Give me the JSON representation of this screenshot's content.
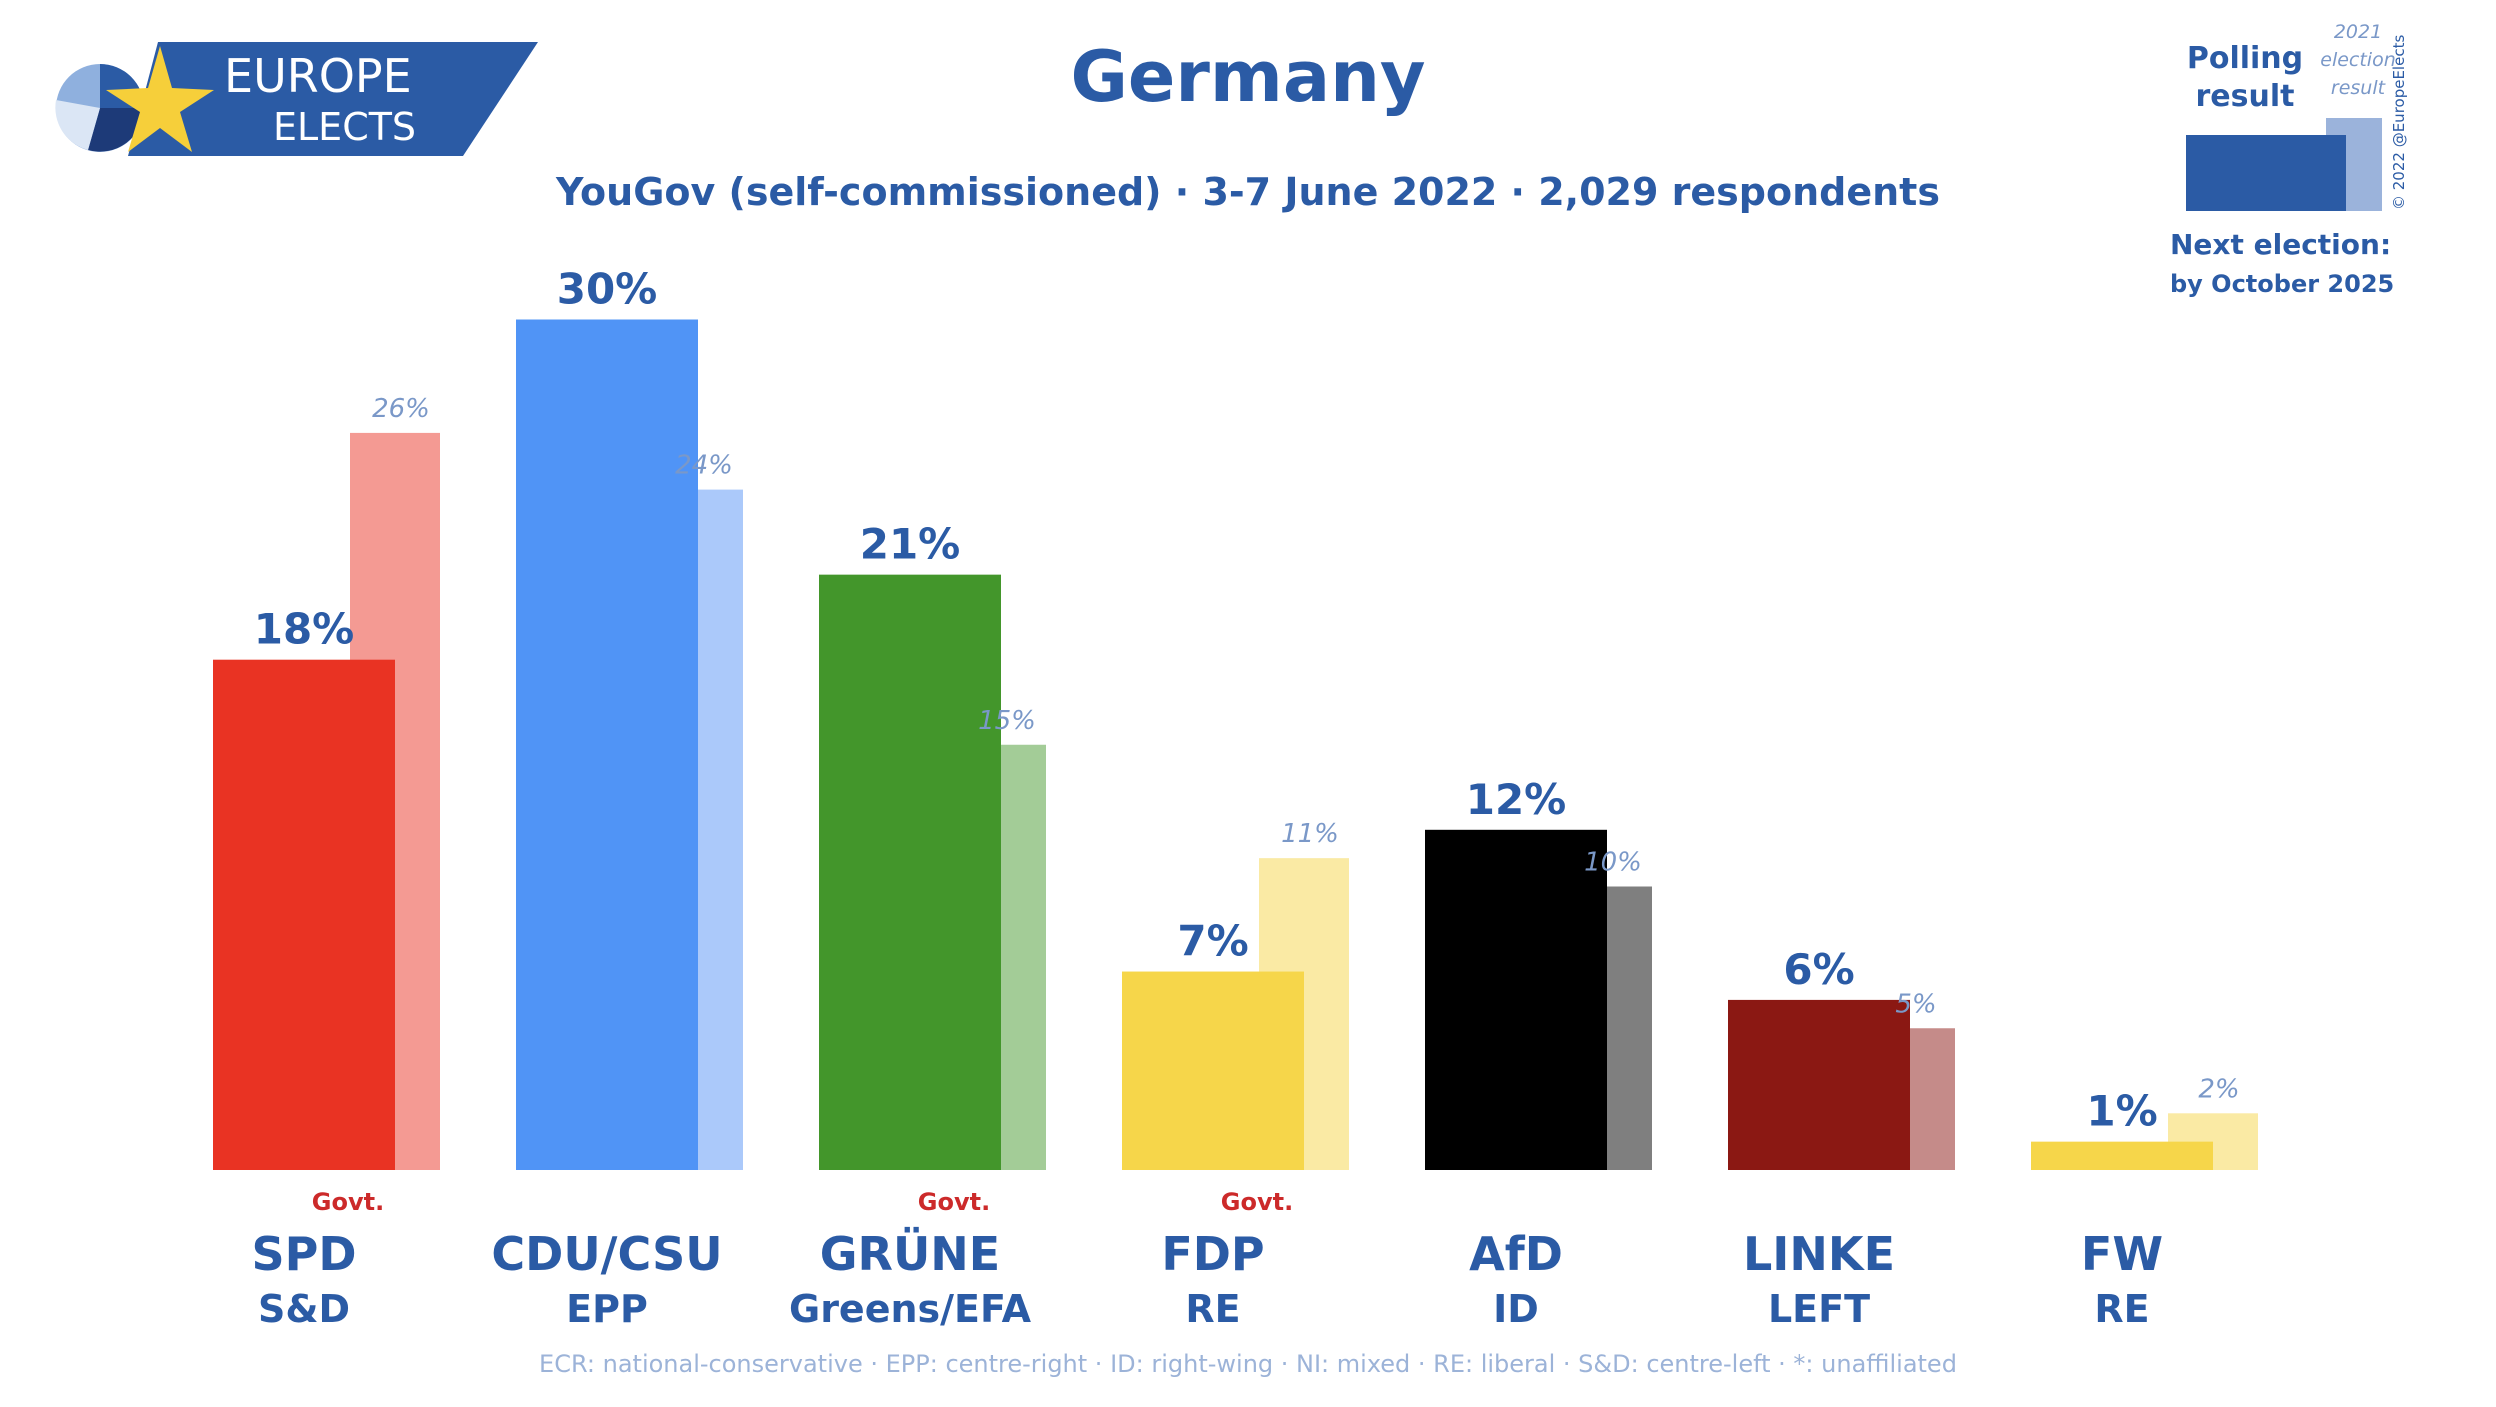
{
  "brand": {
    "line1": "EUROPE",
    "line2": "ELECTS"
  },
  "header": {
    "title": "Germany",
    "subtitle": "YouGov (self-commissioned) · 3-7 June 2022 · 2,029 respondents"
  },
  "legend": {
    "polling_label_1": "Polling",
    "polling_label_2": "result",
    "election_label_1": "2021",
    "election_label_2": "election",
    "election_label_3": "result",
    "next_election_title": "Next election:",
    "next_election_date": "by October 2025",
    "copyright": "© 2022 @EuropeElects"
  },
  "footer": {
    "note": "ECR: national-conservative · EPP: centre-right · ID: right-wing · NI: mixed · RE: liberal · S&D: centre-left · *: unaffiliated"
  },
  "colors": {
    "brand_blue": "#2b5ba5",
    "light_blue_text": "#7a98c8",
    "govt_red": "#cc2a2a"
  },
  "chart_data": {
    "type": "bar",
    "title": "Germany",
    "subtitle": "YouGov (self-commissioned) · 3-7 June 2022 · 2,029 respondents",
    "unit": "%",
    "ylim": [
      0,
      30
    ],
    "grid": false,
    "legend_position": "top-right",
    "series": [
      {
        "name": "Polling result",
        "values": [
          18,
          30,
          21,
          7,
          12,
          6,
          1
        ]
      },
      {
        "name": "2021 election result",
        "values": [
          26,
          24,
          15,
          11,
          10,
          5,
          2
        ]
      }
    ],
    "parties": [
      {
        "name": "SPD",
        "group": "S&D",
        "poll": 18,
        "poll_label": "18%",
        "prev": 26,
        "prev_label": "26%",
        "govt": "Govt.",
        "color": "#e93323",
        "prev_color": "#f49a93"
      },
      {
        "name": "CDU/CSU",
        "group": "EPP",
        "poll": 30,
        "poll_label": "30%",
        "prev": 24,
        "prev_label": "24%",
        "govt": "",
        "color": "#5094f6",
        "prev_color": "#abc9fa"
      },
      {
        "name": "GRÜNE",
        "group": "Greens/EFA",
        "poll": 21,
        "poll_label": "21%",
        "prev": 15,
        "prev_label": "15%",
        "govt": "Govt.",
        "color": "#43962b",
        "prev_color": "#a3cc97"
      },
      {
        "name": "FDP",
        "group": "RE",
        "poll": 7,
        "poll_label": "7%",
        "prev": 11,
        "prev_label": "11%",
        "govt": "Govt.",
        "color": "#f6d64a",
        "prev_color": "#faeaa4"
      },
      {
        "name": "AfD",
        "group": "ID",
        "poll": 12,
        "poll_label": "12%",
        "prev": 10,
        "prev_label": "10%",
        "govt": "",
        "color": "#000000",
        "prev_color": "#7f7f7f"
      },
      {
        "name": "LINKE",
        "group": "LEFT",
        "poll": 6,
        "poll_label": "6%",
        "prev": 5,
        "prev_label": "5%",
        "govt": "",
        "color": "#8b1813",
        "prev_color": "#c58b89"
      },
      {
        "name": "FW",
        "group": "RE",
        "poll": 1,
        "poll_label": "1%",
        "prev": 2,
        "prev_label": "2%",
        "govt": "",
        "color": "#f6d64a",
        "prev_color": "#faeaa4"
      }
    ]
  }
}
